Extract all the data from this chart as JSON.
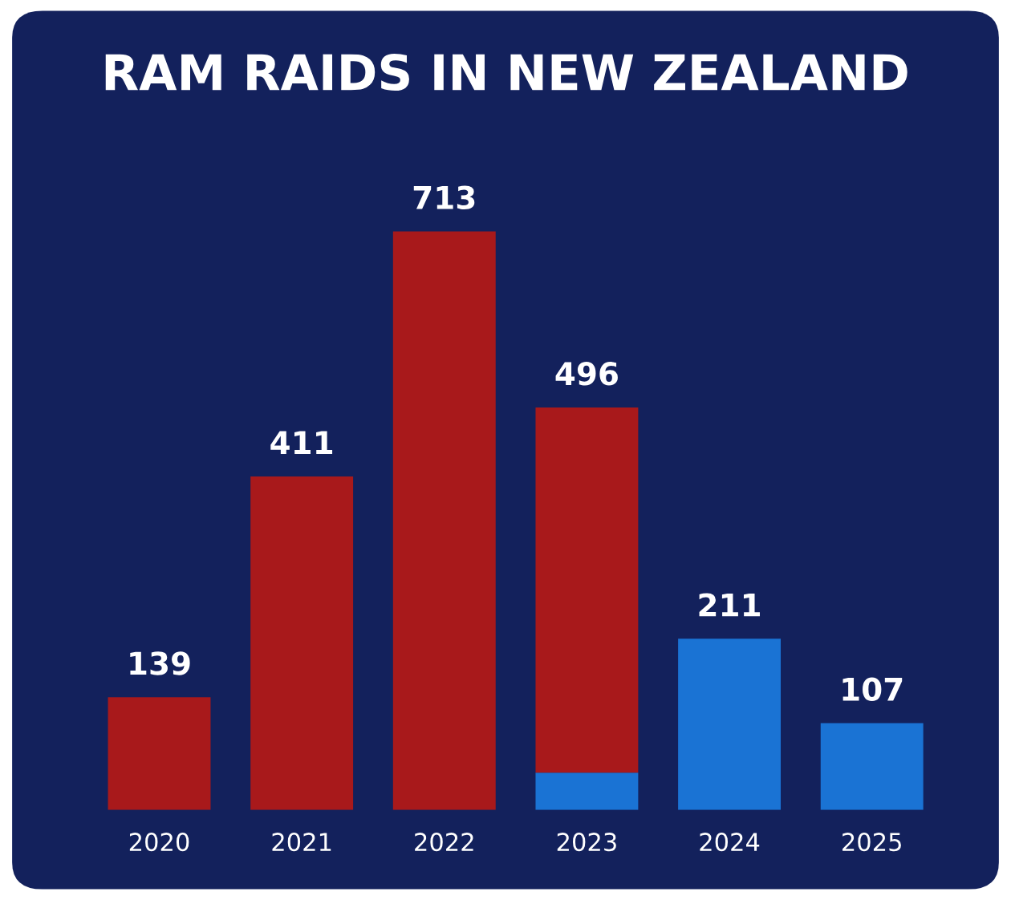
{
  "chart_data": {
    "type": "bar",
    "title": "RAM RAIDS IN NEW ZEALAND",
    "stacked": true,
    "categories": [
      "2020",
      "2021",
      "2022",
      "2023",
      "2024",
      "2025"
    ],
    "series": [
      {
        "color": "#1a73d4",
        "values": [
          null,
          null,
          null,
          46,
          211,
          107
        ],
        "value_labels": [
          null,
          null,
          null,
          null,
          "211",
          "107"
        ]
      },
      {
        "color": "#a8191b",
        "values": [
          139,
          411,
          713,
          450,
          null,
          null
        ],
        "value_labels": [
          "139",
          "411",
          "713",
          null,
          null,
          null
        ]
      }
    ],
    "totals": [
      null,
      null,
      null,
      "496",
      null,
      null
    ],
    "grid": false,
    "legend": false
  }
}
